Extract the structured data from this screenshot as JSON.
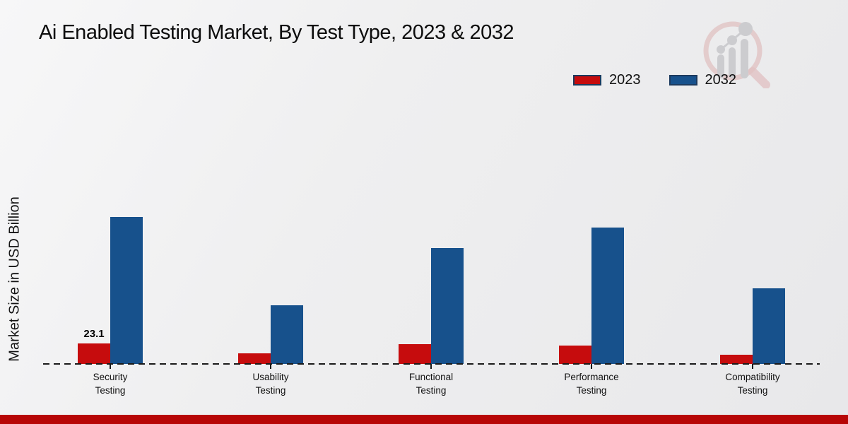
{
  "title": "Ai Enabled Testing Market, By Test Type, 2023 & 2032",
  "ylabel": "Market Size in USD Billion",
  "legend": [
    {
      "label": "2023",
      "color": "#c60c0d"
    },
    {
      "label": "2032",
      "color": "#17518c"
    }
  ],
  "colors": {
    "bar_2023": "#c60c0d",
    "bar_2032": "#17518c",
    "legend_border": "#1c3a5e",
    "baseline": "#1a1a1a",
    "footer_bar": "#b70606",
    "background": "#ededee"
  },
  "watermark": "magnifier-growth-chart-logo",
  "chart_data": {
    "type": "bar",
    "categories": [
      "Security Testing",
      "Usability Testing",
      "Functional Testing",
      "Performance Testing",
      "Compatibility Testing"
    ],
    "series": [
      {
        "name": "2023",
        "color": "#c60c0d",
        "values": [
          23.1,
          11.9,
          22.3,
          20.7,
          10.4
        ]
      },
      {
        "name": "2032",
        "color": "#17518c",
        "values": [
          165.7,
          66.1,
          130.6,
          153.7,
          85.2
        ]
      }
    ],
    "annotations": [
      {
        "series": "2023",
        "category": "Security Testing",
        "text": "23.1"
      }
    ],
    "title": "Ai Enabled Testing Market, By Test Type, 2023 & 2032",
    "xlabel": "",
    "ylabel": "Market Size in USD Billion",
    "ylim": [
      0,
      185
    ],
    "grid": false,
    "baseline_style": "dashed",
    "legend_position": "upper right",
    "value_axis_labels_visible": false
  }
}
